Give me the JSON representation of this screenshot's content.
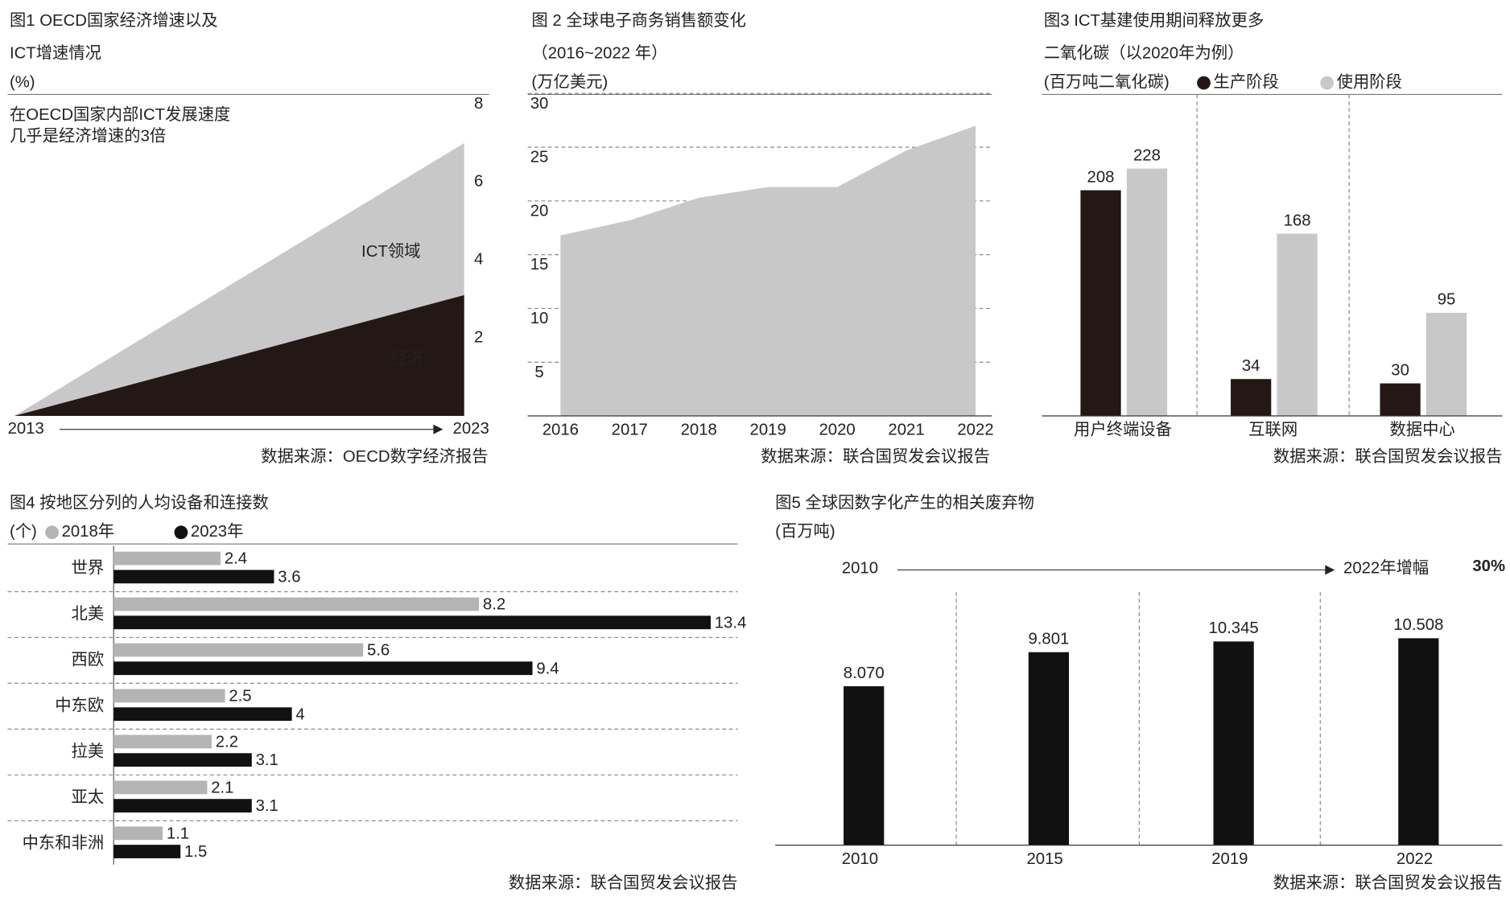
{
  "chart_data": [
    {
      "type": "area",
      "title": [
        "图1 OECD国家经济增速以及",
        "ICT增速情况"
      ],
      "unit": "(%)",
      "annotation": [
        "在OECD国家内部ICT发展速度",
        "几乎是经济增速的3倍"
      ],
      "categories": [
        "2013",
        "2023"
      ],
      "series": [
        {
          "name": "ICT领域",
          "color": "#c8c8c8",
          "values": [
            0,
            7
          ]
        },
        {
          "name": "经济",
          "color": "#231815",
          "values": [
            0,
            3.1
          ]
        }
      ],
      "ylim": [
        0,
        8
      ],
      "yticks": [
        2,
        4,
        6,
        8
      ],
      "grid": false,
      "source": "数据来源：OECD数字经济报告"
    },
    {
      "type": "area",
      "title": [
        "图 2 全球电子商务销售额变化",
        "（2016~2022 年）"
      ],
      "unit": "(万亿美元)",
      "categories": [
        "2016",
        "2017",
        "2018",
        "2019",
        "2020",
        "2021",
        "2022"
      ],
      "values": [
        16.8,
        18.2,
        20.3,
        21.3,
        21.3,
        24.7,
        27.0
      ],
      "color": "#c8c8c8",
      "ylim": [
        0,
        30
      ],
      "yticks": [
        5,
        10,
        15,
        20,
        25,
        30
      ],
      "grid": true,
      "source": "数据来源：联合国贸发会议报告"
    },
    {
      "type": "bar",
      "title": [
        "图3 ICT基建使用期间释放更多",
        "二氧化碳（以2020年为例）"
      ],
      "unit": "(百万吨二氧化碳)",
      "categories": [
        "用户终端设备",
        "互联网",
        "数据中心"
      ],
      "series": [
        {
          "name": "生产阶段",
          "color": "#231815",
          "values": [
            208,
            34,
            30
          ]
        },
        {
          "name": "使用阶段",
          "color": "#c8c8c8",
          "values": [
            228,
            168,
            95
          ]
        }
      ],
      "source": "数据来源：联合国贸发会议报告"
    },
    {
      "type": "barh",
      "title": [
        "图4 按地区分列的人均设备和连接数"
      ],
      "unit": "(个)",
      "categories": [
        "世界",
        "北美",
        "西欧",
        "中东欧",
        "拉美",
        "亚太",
        "中东和非洲"
      ],
      "series": [
        {
          "name": "2018年",
          "color": "#b4b4b4",
          "values": [
            2.4,
            8.2,
            5.6,
            2.5,
            2.2,
            2.1,
            1.1
          ]
        },
        {
          "name": "2023年",
          "color": "#111111",
          "values": [
            3.6,
            13.4,
            9.4,
            4,
            3.1,
            3.1,
            1.5
          ]
        }
      ],
      "source": "数据来源：联合国贸发会议报告"
    },
    {
      "type": "bar",
      "title": [
        "图5 全球因数字化产生的相关废弃物"
      ],
      "unit": "(百万吨)",
      "annotation": {
        "start": "2010",
        "text": "2022年增幅",
        "highlight": "30%"
      },
      "categories": [
        "2010",
        "2015",
        "2019",
        "2022"
      ],
      "values": [
        8.07,
        9.801,
        10.345,
        10.508
      ],
      "value_labels": [
        "8.070",
        "9.801",
        "10.345",
        "10.508"
      ],
      "color": "#111111",
      "source": "数据来源：联合国贸发会议报告"
    }
  ]
}
